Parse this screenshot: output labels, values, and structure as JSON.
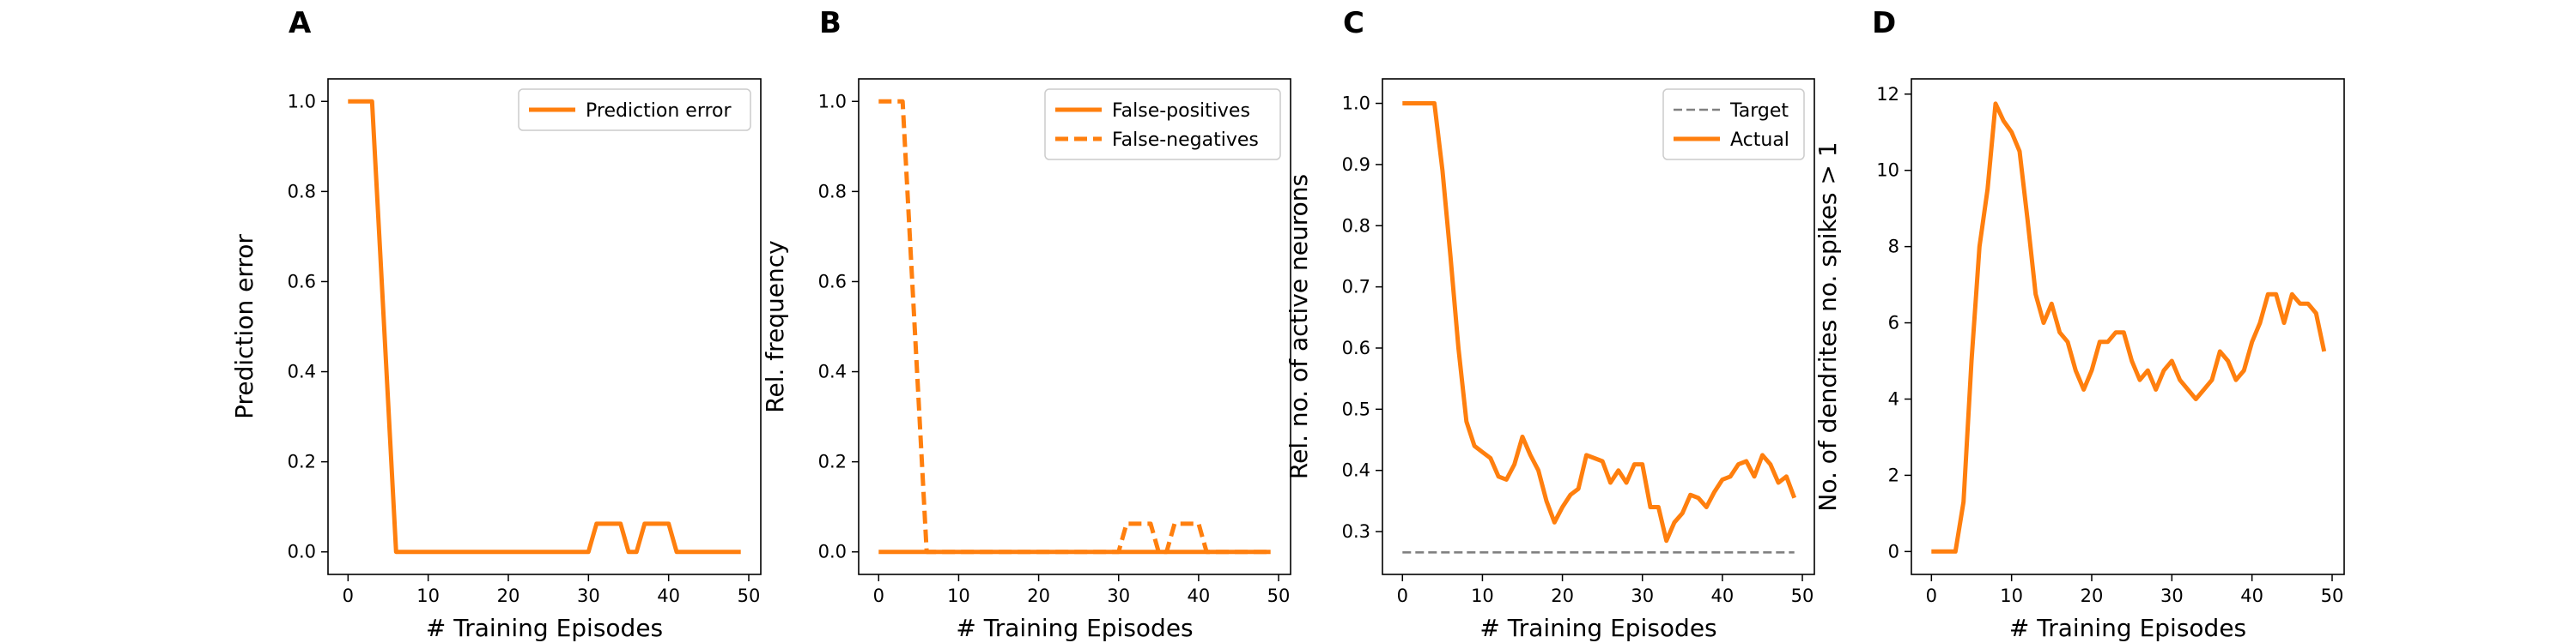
{
  "colors": {
    "series": "#ff7f0e",
    "target": "#808080",
    "axis": "#000000",
    "legend_border": "#cccccc"
  },
  "chart_data": [
    {
      "type": "line",
      "panel": "A",
      "xlabel": "# Training Episodes",
      "ylabel": "Prediction error",
      "xlim": [
        -2.5,
        51.5
      ],
      "ylim": [
        -0.05,
        1.05
      ],
      "xticks": [
        0,
        10,
        20,
        30,
        40,
        50
      ],
      "yticks": [
        0.0,
        0.2,
        0.4,
        0.6,
        0.8,
        1.0
      ],
      "ytick_labels": [
        "0.0",
        "0.2",
        "0.4",
        "0.6",
        "0.8",
        "1.0"
      ],
      "grid": false,
      "legend": "top-right",
      "series": [
        {
          "name": "Prediction error",
          "style": "solid",
          "x": [
            0,
            1,
            2,
            3,
            4,
            5,
            6,
            7,
            8,
            9,
            10,
            11,
            12,
            13,
            14,
            15,
            16,
            17,
            18,
            19,
            20,
            21,
            22,
            23,
            24,
            25,
            26,
            27,
            28,
            29,
            30,
            31,
            32,
            33,
            34,
            35,
            36,
            37,
            38,
            39,
            40,
            41,
            42,
            43,
            44,
            45,
            46,
            47,
            48,
            49
          ],
          "y": [
            1,
            1,
            1,
            1,
            0.667,
            0.333,
            0,
            0,
            0,
            0,
            0,
            0,
            0,
            0,
            0,
            0,
            0,
            0,
            0,
            0,
            0,
            0,
            0,
            0,
            0,
            0,
            0,
            0,
            0,
            0,
            0,
            0.0625,
            0.0625,
            0.0625,
            0.0625,
            0,
            0,
            0.0625,
            0.0625,
            0.0625,
            0.0625,
            0,
            0,
            0,
            0,
            0,
            0,
            0,
            0,
            0
          ]
        }
      ]
    },
    {
      "type": "line",
      "panel": "B",
      "xlabel": "# Training Episodes",
      "ylabel": "Rel. frequency",
      "xlim": [
        -2.5,
        51.5
      ],
      "ylim": [
        -0.05,
        1.05
      ],
      "xticks": [
        0,
        10,
        20,
        30,
        40,
        50
      ],
      "yticks": [
        0.0,
        0.2,
        0.4,
        0.6,
        0.8,
        1.0
      ],
      "ytick_labels": [
        "0.0",
        "0.2",
        "0.4",
        "0.6",
        "0.8",
        "1.0"
      ],
      "grid": false,
      "legend": "top-right",
      "series": [
        {
          "name": "False-positives",
          "style": "solid",
          "x": [
            0,
            5,
            10,
            15,
            20,
            25,
            30,
            35,
            40,
            45,
            49
          ],
          "y": [
            0,
            0,
            0,
            0,
            0,
            0,
            0,
            0,
            0,
            0,
            0
          ]
        },
        {
          "name": "False-negatives",
          "style": "dashed",
          "x": [
            0,
            1,
            2,
            3,
            4,
            5,
            6,
            7,
            8,
            9,
            10,
            11,
            12,
            13,
            14,
            15,
            16,
            17,
            18,
            19,
            20,
            21,
            22,
            23,
            24,
            25,
            26,
            27,
            28,
            29,
            30,
            31,
            32,
            33,
            34,
            35,
            36,
            37,
            38,
            39,
            40,
            41,
            42,
            43,
            44,
            45,
            46,
            47,
            48,
            49
          ],
          "y": [
            1,
            1,
            1,
            1,
            0.667,
            0.333,
            0,
            0,
            0,
            0,
            0,
            0,
            0,
            0,
            0,
            0,
            0,
            0,
            0,
            0,
            0,
            0,
            0,
            0,
            0,
            0,
            0,
            0,
            0,
            0,
            0,
            0.0625,
            0.0625,
            0.0625,
            0.0625,
            0,
            0,
            0.0625,
            0.0625,
            0.0625,
            0.0625,
            0,
            0,
            0,
            0,
            0,
            0,
            0,
            0,
            0
          ]
        }
      ]
    },
    {
      "type": "line",
      "panel": "C",
      "xlabel": "# Training Episodes",
      "ylabel": "Rel. no. of active neurons",
      "xlim": [
        -2.5,
        51.5
      ],
      "ylim": [
        0.23,
        1.04
      ],
      "xticks": [
        0,
        10,
        20,
        30,
        40,
        50
      ],
      "yticks": [
        0.3,
        0.4,
        0.5,
        0.6,
        0.7,
        0.8,
        0.9,
        1.0
      ],
      "ytick_labels": [
        "0.3",
        "0.4",
        "0.5",
        "0.6",
        "0.7",
        "0.8",
        "0.9",
        "1.0"
      ],
      "grid": false,
      "legend": "top-right",
      "series": [
        {
          "name": "Target",
          "style": "dashed-thin",
          "x": [
            0,
            49
          ],
          "y": [
            0.266,
            0.266
          ]
        },
        {
          "name": "Actual",
          "style": "solid",
          "x": [
            0,
            1,
            2,
            3,
            4,
            5,
            6,
            7,
            8,
            9,
            10,
            11,
            12,
            13,
            14,
            15,
            16,
            17,
            18,
            19,
            20,
            21,
            22,
            23,
            24,
            25,
            26,
            27,
            28,
            29,
            30,
            31,
            32,
            33,
            34,
            35,
            36,
            37,
            38,
            39,
            40,
            41,
            42,
            43,
            44,
            45,
            46,
            47,
            48,
            49
          ],
          "y": [
            1.0,
            1.0,
            1.0,
            1.0,
            1.0,
            0.89,
            0.75,
            0.6,
            0.48,
            0.44,
            0.43,
            0.42,
            0.39,
            0.385,
            0.41,
            0.455,
            0.425,
            0.4,
            0.35,
            0.315,
            0.34,
            0.36,
            0.37,
            0.425,
            0.42,
            0.415,
            0.38,
            0.4,
            0.38,
            0.41,
            0.41,
            0.34,
            0.34,
            0.285,
            0.315,
            0.33,
            0.36,
            0.355,
            0.34,
            0.365,
            0.385,
            0.39,
            0.41,
            0.415,
            0.39,
            0.425,
            0.41,
            0.38,
            0.39,
            0.355
          ]
        }
      ]
    },
    {
      "type": "line",
      "panel": "D",
      "xlabel": "# Training Episodes",
      "ylabel": "No. of dendrites no. spikes > 1",
      "xlim": [
        -2.5,
        51.5
      ],
      "ylim": [
        -0.6,
        12.4
      ],
      "xticks": [
        0,
        10,
        20,
        30,
        40,
        50
      ],
      "yticks": [
        0,
        2,
        4,
        6,
        8,
        10,
        12
      ],
      "ytick_labels": [
        "0",
        "2",
        "4",
        "6",
        "8",
        "10",
        "12"
      ],
      "grid": false,
      "legend": "none",
      "series": [
        {
          "style": "solid",
          "x": [
            0,
            1,
            2,
            3,
            4,
            5,
            6,
            7,
            8,
            9,
            10,
            11,
            12,
            13,
            14,
            15,
            16,
            17,
            18,
            19,
            20,
            21,
            22,
            23,
            24,
            25,
            26,
            27,
            28,
            29,
            30,
            31,
            32,
            33,
            34,
            35,
            36,
            37,
            38,
            39,
            40,
            41,
            42,
            43,
            44,
            45,
            46,
            47,
            48,
            49
          ],
          "y": [
            0,
            0,
            0,
            0,
            1.3,
            5.0,
            8.0,
            9.5,
            11.75,
            11.3,
            11.0,
            10.5,
            8.7,
            6.75,
            6.0,
            6.5,
            5.75,
            5.5,
            4.75,
            4.25,
            4.75,
            5.5,
            5.5,
            5.75,
            5.75,
            5.0,
            4.5,
            4.75,
            4.25,
            4.75,
            5.0,
            4.5,
            4.25,
            4.0,
            4.25,
            4.5,
            5.25,
            5.0,
            4.5,
            4.75,
            5.5,
            6.0,
            6.75,
            6.75,
            6.0,
            6.75,
            6.5,
            6.5,
            6.25,
            5.25
          ]
        }
      ]
    }
  ]
}
